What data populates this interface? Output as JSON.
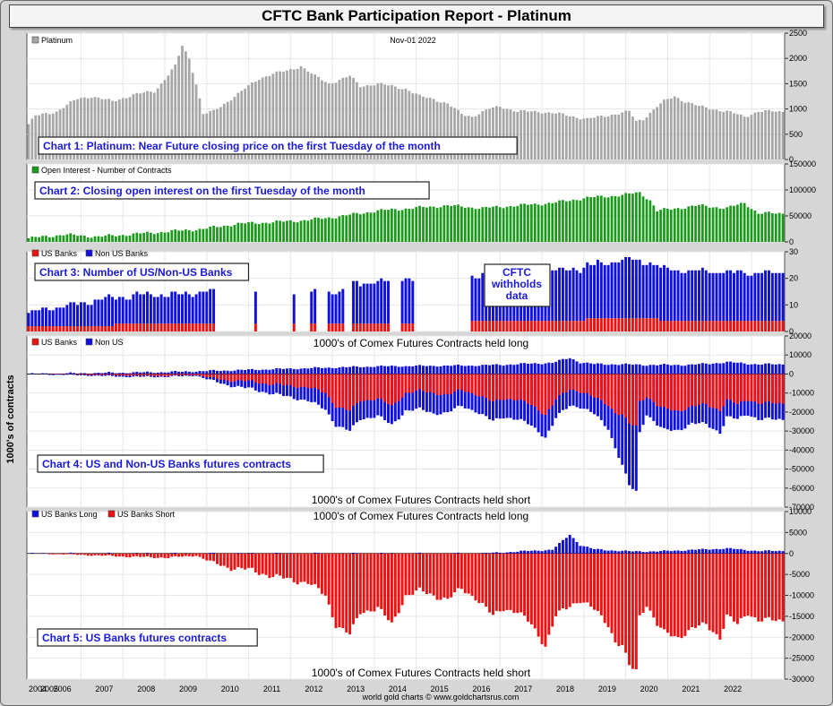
{
  "title": "CFTC Bank Participation Report - Platinum",
  "y_axis_label": "1000's of contracts",
  "footer": "world gold charts © www.goldchartsrus.com",
  "colors": {
    "price": "#a6a6a6",
    "oi": "#1a9a1a",
    "us": "#ee1111",
    "nonus": "#1111dd"
  },
  "year_labels": [
    "2004",
    "2005",
    "2006",
    "2007",
    "2008",
    "2009",
    "2010",
    "2011",
    "2012",
    "2013",
    "2014",
    "2015",
    "2016",
    "2017",
    "2018",
    "2019",
    "2020",
    "2021",
    "2022"
  ],
  "chart_data": [
    {
      "type": "bar",
      "legend": [
        "Platinum"
      ],
      "date_label": "Nov-01  2022",
      "caption": "Chart 1: Platinum: Near Future closing price on the first Tuesday of the month",
      "ylim": [
        0,
        2500
      ],
      "yticks": [
        "0",
        "500",
        "1000",
        "1500",
        "2000",
        "2500"
      ],
      "x_start": "2004-10",
      "keys": [
        [
          0,
          700
        ],
        [
          2,
          860
        ],
        [
          8,
          950
        ],
        [
          14,
          1200
        ],
        [
          18,
          1250
        ],
        [
          24,
          1150
        ],
        [
          30,
          1280
        ],
        [
          36,
          1350
        ],
        [
          38,
          1500
        ],
        [
          42,
          1850
        ],
        [
          44,
          2250
        ],
        [
          46,
          2000
        ],
        [
          48,
          1500
        ],
        [
          50,
          900
        ],
        [
          53,
          950
        ],
        [
          58,
          1200
        ],
        [
          62,
          1400
        ],
        [
          66,
          1600
        ],
        [
          70,
          1700
        ],
        [
          74,
          1750
        ],
        [
          78,
          1850
        ],
        [
          82,
          1650
        ],
        [
          86,
          1500
        ],
        [
          88,
          1550
        ],
        [
          92,
          1650
        ],
        [
          95,
          1450
        ],
        [
          100,
          1500
        ],
        [
          104,
          1450
        ],
        [
          108,
          1400
        ],
        [
          112,
          1250
        ],
        [
          116,
          1200
        ],
        [
          120,
          1100
        ],
        [
          124,
          900
        ],
        [
          127,
          850
        ],
        [
          132,
          1000
        ],
        [
          135,
          1050
        ],
        [
          140,
          950
        ],
        [
          146,
          950
        ],
        [
          152,
          900
        ],
        [
          156,
          850
        ],
        [
          160,
          800
        ],
        [
          164,
          850
        ],
        [
          168,
          900
        ],
        [
          172,
          950
        ],
        [
          174,
          750
        ],
        [
          176,
          800
        ],
        [
          180,
          1050
        ],
        [
          182,
          1150
        ],
        [
          185,
          1250
        ],
        [
          188,
          1150
        ],
        [
          192,
          1050
        ],
        [
          196,
          1000
        ],
        [
          200,
          950
        ],
        [
          205,
          850
        ],
        [
          209,
          950
        ]
      ]
    },
    {
      "type": "bar",
      "legend": [
        "Open Interest - Number of Contracts"
      ],
      "caption": "Chart 2: Closing open interest on the first Tuesday of the month",
      "ylim": [
        0,
        150000
      ],
      "yticks": [
        "0",
        "50000",
        "100000",
        "150000"
      ],
      "keys": [
        [
          0,
          7000
        ],
        [
          10,
          14000
        ],
        [
          20,
          10000
        ],
        [
          30,
          15000
        ],
        [
          40,
          20000
        ],
        [
          50,
          25000
        ],
        [
          60,
          35000
        ],
        [
          70,
          38000
        ],
        [
          80,
          42000
        ],
        [
          90,
          50000
        ],
        [
          100,
          60000
        ],
        [
          110,
          65000
        ],
        [
          120,
          70000
        ],
        [
          130,
          65000
        ],
        [
          140,
          70000
        ],
        [
          150,
          75000
        ],
        [
          160,
          85000
        ],
        [
          170,
          90000
        ],
        [
          175,
          95000
        ],
        [
          178,
          80000
        ],
        [
          180,
          60000
        ],
        [
          186,
          65000
        ],
        [
          192,
          70000
        ],
        [
          200,
          65000
        ],
        [
          205,
          75000
        ],
        [
          209,
          55000
        ]
      ]
    },
    {
      "type": "bar",
      "legend": [
        "US Banks",
        "Non US Banks"
      ],
      "caption": "Chart 3: Number of US/Non-US Banks",
      "note": [
        "CFTC",
        "withholds",
        "data"
      ],
      "ylim": [
        0,
        30
      ],
      "yticks": [
        "0",
        "10",
        "20",
        "30"
      ],
      "series": [
        {
          "name": "US Banks",
          "keys": [
            [
              0,
              2
            ],
            [
              50,
              3
            ],
            [
              90,
              3
            ],
            [
              110,
              3
            ],
            [
              130,
              4
            ],
            [
              150,
              4
            ],
            [
              170,
              5
            ],
            [
              190,
              4
            ],
            [
              209,
              4
            ]
          ]
        },
        {
          "name": "Non US Banks",
          "keys": [
            [
              0,
              5
            ],
            [
              20,
              10
            ],
            [
              40,
              11
            ],
            [
              53,
              12
            ],
            [
              90,
              12
            ],
            [
              94,
              15
            ],
            [
              110,
              17
            ],
            [
              130,
              17
            ],
            [
              143,
              18
            ],
            [
              160,
              20
            ],
            [
              172,
              22
            ],
            [
              185,
              19
            ],
            [
              209,
              18
            ]
          ]
        }
      ],
      "gaps": [
        [
          54,
          64
        ],
        [
          66,
          75
        ],
        [
          77,
          80
        ],
        [
          83,
          85
        ],
        [
          91,
          92
        ],
        [
          104,
          106
        ],
        [
          111,
          126
        ]
      ]
    },
    {
      "type": "bar",
      "legend": [
        "US Banks",
        "Non US"
      ],
      "caption": "Chart 4: US and Non-US Banks futures contracts",
      "top_label": "1000's of Comex Futures Contracts held long",
      "bottom_label": "1000's of Comex Futures Contracts held short",
      "ylim": [
        -70000,
        20000
      ],
      "yticks": [
        "-70000",
        "-60000",
        "-50000",
        "-40000",
        "-30000",
        "-20000",
        "-10000",
        "0",
        "10000",
        "20000"
      ]
    },
    {
      "type": "bar",
      "legend": [
        "US Banks Long",
        "US Banks Short"
      ],
      "caption": "Chart 5: US Banks futures contracts",
      "top_label": "1000's of Comex Futures Contracts held long",
      "bottom_label": "1000's of Comex Futures Contracts held short",
      "ylim": [
        -30000,
        10000
      ],
      "yticks": [
        "-30000",
        "-25000",
        "-20000",
        "-15000",
        "-10000",
        "-5000",
        "0",
        "5000",
        "10000"
      ],
      "series": [
        {
          "name": "US Banks Short",
          "keys": [
            [
              0,
              0
            ],
            [
              10,
              -200
            ],
            [
              20,
              -500
            ],
            [
              30,
              -800
            ],
            [
              40,
              -1000
            ],
            [
              48,
              -500
            ],
            [
              52,
              -2000
            ],
            [
              58,
              -3500
            ],
            [
              64,
              -4000
            ],
            [
              70,
              -5500
            ],
            [
              80,
              -7000
            ],
            [
              85,
              -10000
            ],
            [
              88,
              -17000
            ],
            [
              92,
              -19500
            ],
            [
              95,
              -14000
            ],
            [
              100,
              -13000
            ],
            [
              104,
              -17000
            ],
            [
              108,
              -10000
            ],
            [
              112,
              -9000
            ],
            [
              116,
              -10000
            ],
            [
              120,
              -11000
            ],
            [
              124,
              -8500
            ],
            [
              128,
              -10500
            ],
            [
              133,
              -15000
            ],
            [
              136,
              -13000
            ],
            [
              140,
              -14000
            ],
            [
              144,
              -17000
            ],
            [
              148,
              -22000
            ],
            [
              151,
              -15000
            ],
            [
              155,
              -12500
            ],
            [
              158,
              -11000
            ],
            [
              162,
              -13500
            ],
            [
              166,
              -17000
            ],
            [
              168,
              -21000
            ],
            [
              170,
              -22000
            ],
            [
              172,
              -27000
            ],
            [
              174,
              -28000
            ],
            [
              175,
              -15000
            ],
            [
              177,
              -12000
            ],
            [
              180,
              -17000
            ],
            [
              182,
              -19000
            ],
            [
              186,
              -20000
            ],
            [
              190,
              -18000
            ],
            [
              194,
              -17000
            ],
            [
              198,
              -20000
            ],
            [
              200,
              -15000
            ],
            [
              203,
              -17000
            ],
            [
              206,
              -14000
            ],
            [
              209,
              -16000
            ]
          ]
        },
        {
          "name": "US Banks Long",
          "keys": [
            [
              0,
              0
            ],
            [
              130,
              0
            ],
            [
              150,
              900
            ],
            [
              155,
              4500
            ],
            [
              158,
              2000
            ],
            [
              162,
              1000
            ],
            [
              166,
              800
            ],
            [
              172,
              500
            ],
            [
              180,
              500
            ],
            [
              200,
              1200
            ],
            [
              209,
              600
            ]
          ]
        }
      ],
      "nonus_keys": [
        [
          0,
          0
        ],
        [
          30,
          0
        ],
        [
          48,
          1000
        ],
        [
          55,
          -300
        ],
        [
          62,
          -1500
        ],
        [
          70,
          -2500
        ],
        [
          80,
          -4000
        ],
        [
          85,
          -5500
        ],
        [
          88,
          -6500
        ],
        [
          92,
          -7000
        ],
        [
          95,
          -6000
        ],
        [
          100,
          -5000
        ],
        [
          104,
          -6000
        ],
        [
          108,
          -5000
        ],
        [
          112,
          -5500
        ],
        [
          116,
          -6500
        ],
        [
          120,
          -5000
        ],
        [
          124,
          -4000
        ],
        [
          128,
          -4500
        ],
        [
          133,
          -5500
        ],
        [
          136,
          -5000
        ],
        [
          140,
          -5500
        ],
        [
          144,
          -6000
        ],
        [
          148,
          -7000
        ],
        [
          151,
          -5000
        ],
        [
          155,
          -4500
        ],
        [
          158,
          -4000
        ],
        [
          162,
          -4500
        ],
        [
          166,
          -8000
        ],
        [
          168,
          -14000
        ],
        [
          170,
          -22000
        ],
        [
          172,
          -28000
        ],
        [
          174,
          -30000
        ],
        [
          175,
          -12000
        ],
        [
          177,
          -5000
        ],
        [
          180,
          -6000
        ],
        [
          182,
          -7000
        ],
        [
          186,
          -6000
        ],
        [
          190,
          -5000
        ],
        [
          194,
          -6000
        ],
        [
          198,
          -7000
        ],
        [
          200,
          -4000
        ],
        [
          203,
          -3000
        ],
        [
          206,
          -3000
        ],
        [
          209,
          -4000
        ]
      ],
      "nonus_long_keys": [
        [
          0,
          0
        ],
        [
          40,
          1000
        ],
        [
          60,
          2000
        ],
        [
          80,
          3000
        ],
        [
          100,
          4000
        ],
        [
          130,
          4500
        ],
        [
          150,
          5000
        ],
        [
          155,
          4000
        ],
        [
          170,
          4500
        ],
        [
          190,
          4000
        ],
        [
          200,
          5000
        ],
        [
          209,
          4500
        ]
      ]
    }
  ]
}
